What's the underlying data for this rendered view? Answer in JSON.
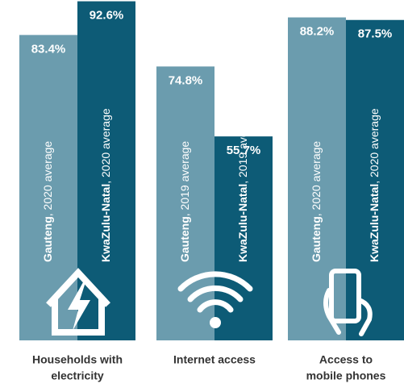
{
  "chart_data": {
    "type": "bar",
    "categories": [
      [
        "Households with",
        "electricity"
      ],
      [
        "Internet access"
      ],
      [
        "Access to",
        "mobile phones"
      ]
    ],
    "series": [
      {
        "name": "Gauteng",
        "color": "#6b9cae",
        "values": [
          83.4,
          74.8,
          88.2
        ],
        "value_labels": [
          "83.4%",
          "74.8%",
          "88.2%"
        ],
        "label_suffixes": [
          ", 2020 average",
          ", 2019 average",
          ", 2020 average"
        ]
      },
      {
        "name": "KwaZulu-Natal",
        "color": "#0d5b76",
        "values": [
          92.6,
          55.7,
          87.5
        ],
        "value_labels": [
          "92.6%",
          "55.7%",
          "87.5%"
        ],
        "label_suffixes": [
          ", 2020 average",
          ", 2019 average",
          ", 2020 average"
        ]
      }
    ]
  }
}
